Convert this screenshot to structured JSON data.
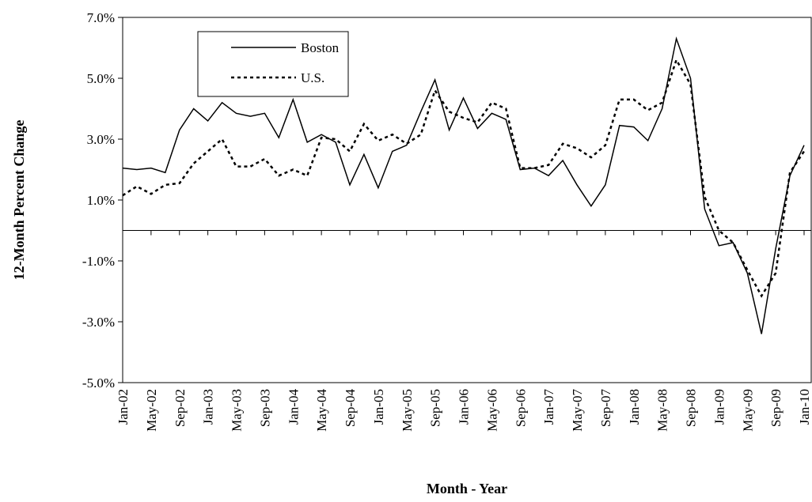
{
  "chart_data": {
    "type": "line",
    "x_label": "Month - Year",
    "y_label": "12-Month Percent Change",
    "categories": [
      "Jan-02",
      null,
      "May-02",
      null,
      "Sep-02",
      null,
      "Jan-03",
      null,
      "May-03",
      null,
      "Sep-03",
      null,
      "Jan-04",
      null,
      "May-04",
      null,
      "Sep-04",
      null,
      "Jan-05",
      null,
      "May-05",
      null,
      "Sep-05",
      null,
      "Jan-06",
      null,
      "May-06",
      null,
      "Sep-06",
      null,
      "Jan-07",
      null,
      "May-07",
      null,
      "Sep-07",
      null,
      "Jan-08",
      null,
      "May-08",
      null,
      "Sep-08",
      null,
      "Jan-09",
      null,
      "May-09",
      null,
      "Sep-09",
      null,
      "Jan-10"
    ],
    "series": [
      {
        "name": "Boston",
        "color": "#000000",
        "dash": "solid",
        "values": [
          2.05,
          2.0,
          2.05,
          1.9,
          3.3,
          4.0,
          3.6,
          4.2,
          3.85,
          3.75,
          3.85,
          3.05,
          4.3,
          2.9,
          3.15,
          2.9,
          1.5,
          2.5,
          1.4,
          2.6,
          2.8,
          3.9,
          4.95,
          3.3,
          4.35,
          3.35,
          3.85,
          3.65,
          2.0,
          2.05,
          1.8,
          2.3,
          1.5,
          0.8,
          1.5,
          3.45,
          3.4,
          2.95,
          4.0,
          6.3,
          5.0,
          0.7,
          -0.5,
          -0.4,
          -1.4,
          -3.4,
          -0.6,
          1.8,
          2.8
        ]
      },
      {
        "name": "U.S.",
        "color": "#000000",
        "dash": "dotted",
        "values": [
          1.15,
          1.45,
          1.2,
          1.5,
          1.55,
          2.2,
          2.6,
          3.0,
          2.1,
          2.1,
          2.35,
          1.8,
          2.0,
          1.8,
          3.05,
          3.0,
          2.6,
          3.5,
          2.95,
          3.15,
          2.85,
          3.15,
          4.6,
          3.9,
          3.7,
          3.55,
          4.2,
          4.0,
          2.05,
          2.05,
          2.15,
          2.85,
          2.7,
          2.4,
          2.8,
          4.3,
          4.3,
          3.95,
          4.2,
          5.6,
          4.8,
          1.1,
          0.0,
          -0.4,
          -1.3,
          -2.15,
          -1.4,
          1.9,
          2.6
        ]
      }
    ],
    "ylim": [
      -5,
      7
    ],
    "yticks": [
      {
        "value": -5,
        "label": "-5.0%"
      },
      {
        "value": -3,
        "label": "-3.0%"
      },
      {
        "value": -1,
        "label": "-1.0%"
      },
      {
        "value": 1,
        "label": "1.0%"
      },
      {
        "value": 3,
        "label": "3.0%"
      },
      {
        "value": 5,
        "label": "5.0%"
      },
      {
        "value": 7,
        "label": "7.0%"
      }
    ],
    "grid": false,
    "legend": "upper left"
  }
}
